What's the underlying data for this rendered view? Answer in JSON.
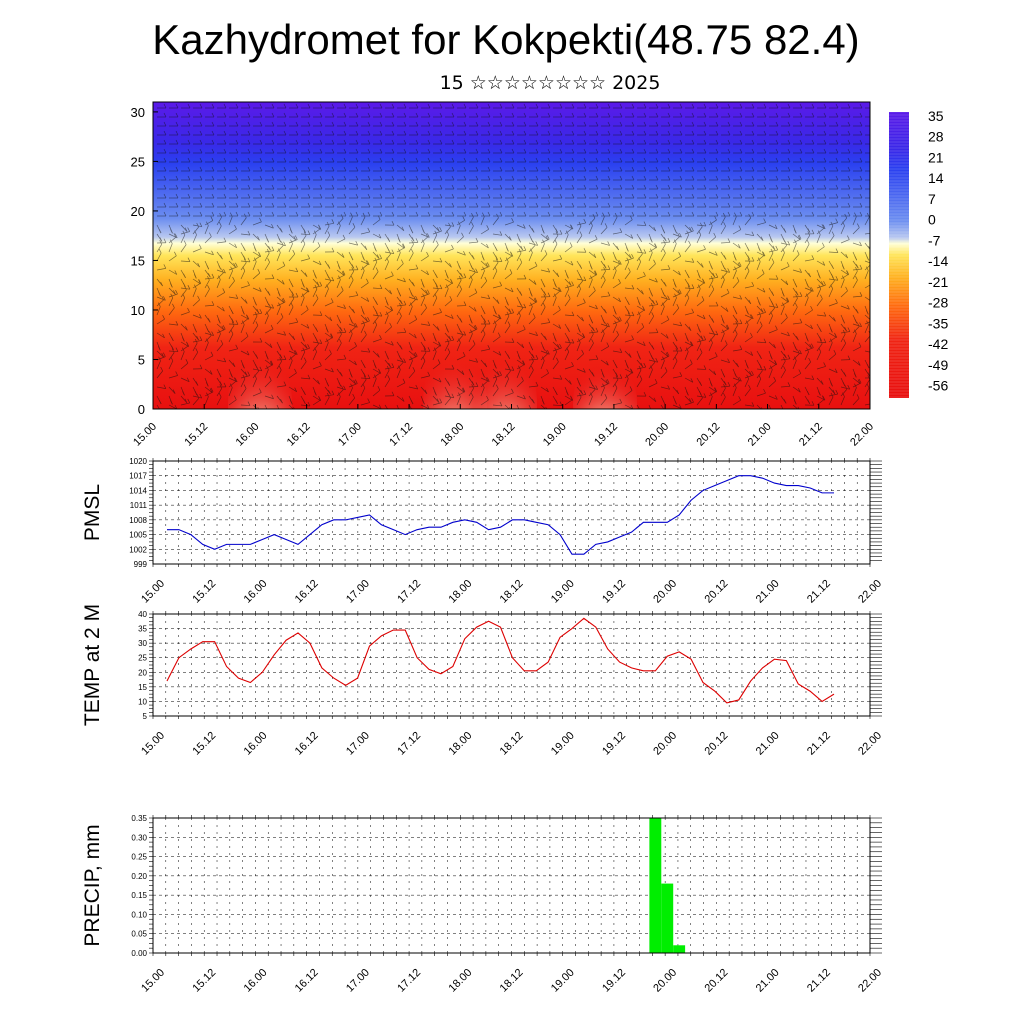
{
  "title": "Kazhydromet for Kokpekti(48.75 82.4)",
  "subtitle": "15 ☆☆☆☆☆☆☆☆ 2025",
  "colors": {
    "pmsl_line": "#0000cc",
    "temp_line": "#dd0000",
    "precip_bar": "#00ee00"
  },
  "chart_data": [
    {
      "type": "heatmap",
      "title": "",
      "xlabel": "",
      "ylabel": "",
      "x_tick_labels": [
        "15.00",
        "15.12",
        "16.00",
        "16.12",
        "17.00",
        "17.12",
        "18.00",
        "18.12",
        "19.00",
        "19.12",
        "20.00",
        "20.12",
        "21.00",
        "21.12",
        "22.00"
      ],
      "y_ticks": [
        0,
        5,
        10,
        15,
        20,
        25,
        30
      ],
      "ylim": [
        0,
        31
      ],
      "colorbar_labels": [
        "35",
        "28",
        "21",
        "14",
        "7",
        "0",
        "-7",
        "-14",
        "-21",
        "-28",
        "-35",
        "-42",
        "-49",
        "-56"
      ],
      "overlay": "wind barbs",
      "grid": false
    },
    {
      "type": "line",
      "ylabel": "PMSL",
      "ylim": [
        999,
        1020
      ],
      "y_ticks": [
        999,
        1002,
        1005,
        1008,
        1011,
        1014,
        1017,
        1020
      ],
      "x_tick_labels": [
        "15.00",
        "15.12",
        "16.00",
        "16.12",
        "17.00",
        "17.12",
        "18.00",
        "18.12",
        "19.00",
        "19.12",
        "20.00",
        "20.12",
        "21.00",
        "21.12",
        "22.00"
      ],
      "grid": true,
      "series": [
        {
          "values": [
            1006,
            1006,
            1005,
            1003,
            1002,
            1003,
            1003,
            1003,
            1004,
            1005,
            1004,
            1003,
            1005,
            1007,
            1008,
            1008,
            1008.5,
            1009,
            1007,
            1006,
            1005,
            1006,
            1006.5,
            1006.5,
            1007.5,
            1008,
            1007.5,
            1006,
            1006.5,
            1008,
            1008,
            1007.5,
            1007,
            1005,
            1001,
            1001,
            1003,
            1003.5,
            1004.5,
            1005.5,
            1007.5,
            1007.5,
            1007.5,
            1009,
            1012,
            1014,
            1015,
            1016,
            1017,
            1017,
            1016.5,
            1015.5,
            1015,
            1015,
            1014.5,
            1013.5,
            1013.5
          ]
        }
      ]
    },
    {
      "type": "line",
      "ylabel": "TEMP at 2 M",
      "ylim": [
        5,
        40
      ],
      "y_ticks": [
        5,
        10,
        15,
        20,
        25,
        30,
        35,
        40
      ],
      "x_tick_labels": [
        "15.00",
        "15.12",
        "16.00",
        "16.12",
        "17.00",
        "17.12",
        "18.00",
        "18.12",
        "19.00",
        "19.12",
        "20.00",
        "20.12",
        "21.00",
        "21.12",
        "22.00"
      ],
      "grid": true,
      "series": [
        {
          "values": [
            17,
            25,
            28,
            30.5,
            30.5,
            22,
            18,
            16.5,
            20,
            26,
            31,
            33.5,
            30,
            21.5,
            18,
            15.5,
            18,
            29,
            32.5,
            34.5,
            34.5,
            25,
            21,
            19.5,
            22,
            31.5,
            35.5,
            37.5,
            35.5,
            25,
            20.5,
            20.5,
            23.5,
            32,
            35,
            38.5,
            35.5,
            28,
            23.5,
            21.5,
            20.5,
            20.5,
            25.5,
            27,
            24.5,
            16.5,
            13.5,
            9.5,
            10.5,
            17,
            21.5,
            24.5,
            24,
            16,
            13.5,
            10,
            12.5
          ]
        }
      ]
    },
    {
      "type": "bar",
      "ylabel": "PRECIP, mm",
      "ylim": [
        0,
        0.35
      ],
      "y_ticks": [
        "0.00",
        "0.05",
        "0.10",
        "0.15",
        "0.20",
        "0.25",
        "0.30",
        "0.35"
      ],
      "x_tick_labels": [
        "15.00",
        "15.12",
        "16.00",
        "16.12",
        "17.00",
        "17.12",
        "18.00",
        "18.12",
        "19.00",
        "19.12",
        "20.00",
        "20.12",
        "21.00",
        "21.12",
        "22.00"
      ],
      "grid": true,
      "bars": [
        {
          "x_index": 41,
          "value": 0.35
        },
        {
          "x_index": 42,
          "value": 0.18
        },
        {
          "x_index": 43,
          "value": 0.02
        }
      ]
    }
  ]
}
